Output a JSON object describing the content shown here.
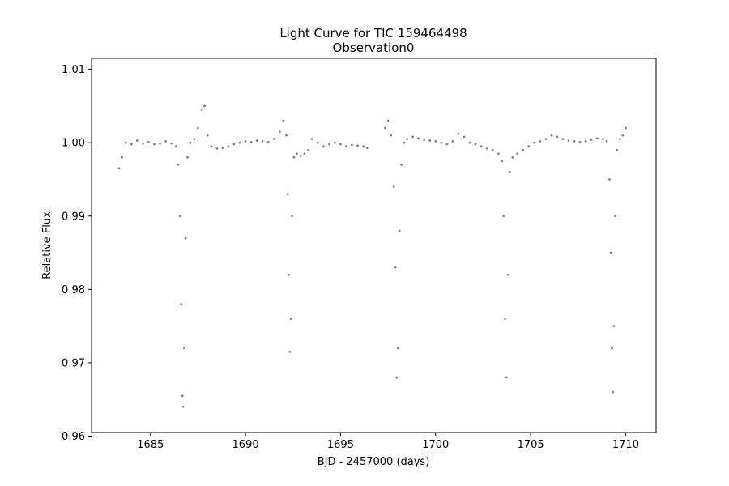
{
  "chart_data": {
    "type": "scatter",
    "title": "Light Curve for TIC 159464498",
    "subtitle": "Observation0",
    "xlabel": "BJD - 2457000 (days)",
    "ylabel": "Relative Flux",
    "xlim": [
      1681.9,
      1711.6
    ],
    "ylim": [
      0.9605,
      1.0115
    ],
    "xticks": [
      1685,
      1690,
      1695,
      1700,
      1705,
      1710
    ],
    "xtick_labels": [
      "1685",
      "1690",
      "1695",
      "1700",
      "1705",
      "1710"
    ],
    "yticks": [
      0.96,
      0.97,
      0.98,
      0.99,
      1.0,
      1.01
    ],
    "ytick_labels": [
      "0.96",
      "0.97",
      "0.98",
      "0.99",
      "1.00",
      "1.01"
    ],
    "grid": false,
    "legend": "none",
    "marker_color": "#808080",
    "series": [
      {
        "x": [
          1683.35,
          1683.5,
          1683.7,
          1684.0,
          1684.3,
          1684.6,
          1684.9,
          1685.2,
          1685.5,
          1685.8,
          1686.1,
          1686.35,
          1686.45,
          1686.55,
          1686.62,
          1686.68,
          1686.72,
          1686.78,
          1686.85,
          1686.95,
          1687.1,
          1687.3,
          1687.5,
          1687.7,
          1687.85,
          1688.0,
          1688.2,
          1688.5,
          1688.8,
          1689.1,
          1689.4,
          1689.7,
          1690.0,
          1690.3,
          1690.6,
          1690.9,
          1691.2,
          1691.5,
          1691.8,
          1692.0,
          1692.15,
          1692.22,
          1692.28,
          1692.33,
          1692.38,
          1692.45,
          1692.55,
          1692.7,
          1692.9,
          1693.1,
          1693.3,
          1693.5,
          1693.8,
          1694.1,
          1694.4,
          1694.7,
          1695.0,
          1695.3,
          1695.6,
          1695.9,
          1696.2,
          1696.4,
          1697.35,
          1697.5,
          1697.65,
          1697.8,
          1697.88,
          1697.95,
          1698.02,
          1698.1,
          1698.2,
          1698.35,
          1698.5,
          1698.8,
          1699.1,
          1699.4,
          1699.7,
          1700.0,
          1700.3,
          1700.6,
          1700.9,
          1701.2,
          1701.5,
          1701.8,
          1702.1,
          1702.4,
          1702.7,
          1703.0,
          1703.3,
          1703.5,
          1703.58,
          1703.65,
          1703.72,
          1703.8,
          1703.9,
          1704.05,
          1704.3,
          1704.6,
          1704.9,
          1705.2,
          1705.5,
          1705.8,
          1706.1,
          1706.4,
          1706.7,
          1707.0,
          1707.3,
          1707.6,
          1707.9,
          1708.2,
          1708.5,
          1708.8,
          1709.0,
          1709.15,
          1709.22,
          1709.28,
          1709.33,
          1709.38,
          1709.45,
          1709.55,
          1709.7,
          1709.85,
          1710.0
        ],
        "y": [
          0.9965,
          0.998,
          1.0,
          0.9998,
          1.0003,
          0.9999,
          1.0001,
          0.9998,
          0.9999,
          1.0002,
          0.9999,
          0.9995,
          0.997,
          0.99,
          0.978,
          0.9655,
          0.964,
          0.972,
          0.987,
          0.998,
          1.0,
          1.0005,
          1.002,
          1.0045,
          1.005,
          1.001,
          0.9995,
          0.9992,
          0.9993,
          0.9995,
          0.9998,
          1.0,
          1.0002,
          1.0001,
          1.0003,
          1.0002,
          1.0001,
          1.0005,
          1.0015,
          1.003,
          1.001,
          0.993,
          0.982,
          0.9715,
          0.976,
          0.99,
          0.998,
          0.9985,
          0.9982,
          0.9985,
          0.999,
          1.0005,
          1.0,
          0.9995,
          0.9998,
          1.0,
          0.9998,
          0.9995,
          0.9997,
          0.9996,
          0.9995,
          0.9993,
          1.002,
          1.003,
          1.001,
          0.994,
          0.983,
          0.968,
          0.972,
          0.988,
          0.997,
          1.0,
          1.0005,
          1.0008,
          1.0006,
          1.0004,
          1.0003,
          1.0002,
          1.0,
          0.9998,
          1.0002,
          1.0012,
          1.0008,
          1.0,
          0.9998,
          0.9995,
          0.9992,
          0.999,
          0.9985,
          0.9975,
          0.99,
          0.976,
          0.968,
          0.982,
          0.996,
          0.998,
          0.9985,
          0.999,
          0.9995,
          1.0,
          1.0002,
          1.0005,
          1.001,
          1.0008,
          1.0005,
          1.0003,
          1.0002,
          1.0001,
          1.0002,
          1.0004,
          1.0006,
          1.0005,
          1.0002,
          0.995,
          0.985,
          0.972,
          0.966,
          0.975,
          0.99,
          0.999,
          1.0005,
          1.001,
          1.002
        ]
      }
    ]
  }
}
